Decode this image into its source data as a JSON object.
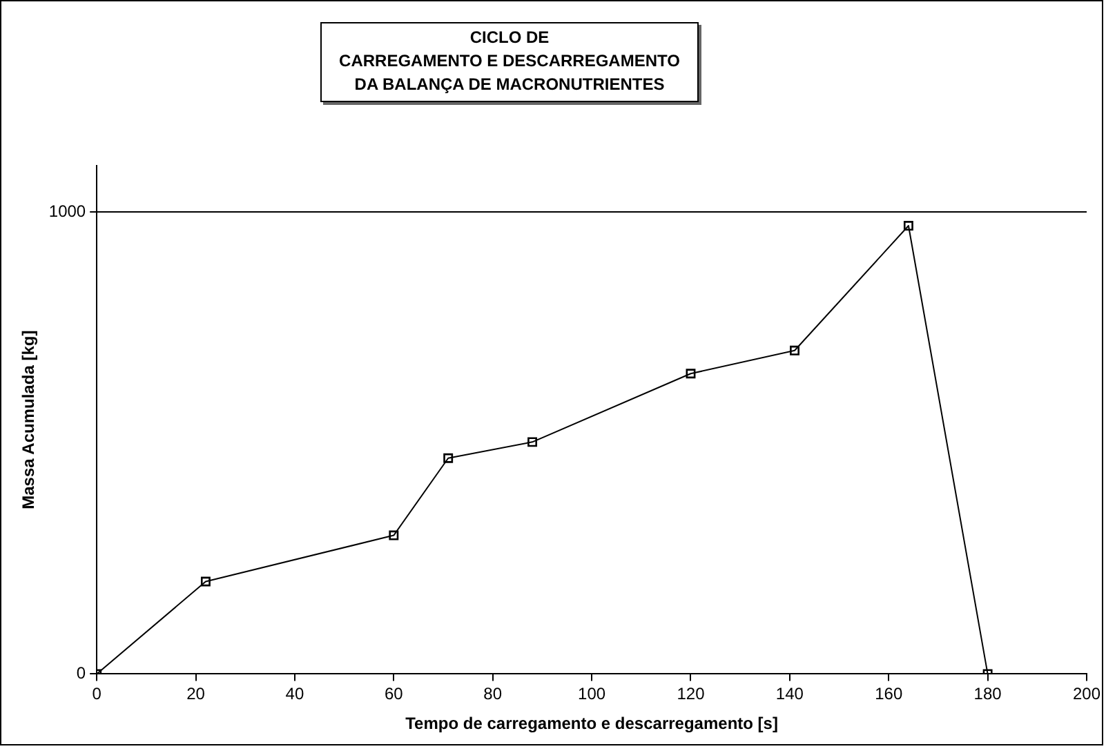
{
  "chart_data": {
    "type": "line",
    "title": "CICLO DE\nCARREGAMENTO E DESCARREGAMENTO\nDA BALANÇA DE MACRONUTRIENTES",
    "xlabel": "Tempo de carregamento e descarregamento [s]",
    "ylabel": "Massa Acumulada [kg]",
    "x": [
      0,
      22,
      60,
      71,
      88,
      120,
      141,
      164,
      180
    ],
    "series": [
      {
        "color": "#000000",
        "values": [
          0,
          200,
          300,
          467,
          502,
          650,
          700,
          970,
          0
        ]
      }
    ],
    "xlim": [
      0,
      200
    ],
    "xticks": [
      0,
      20,
      40,
      60,
      80,
      100,
      120,
      140,
      160,
      180,
      200
    ],
    "ylim": [
      0,
      1100
    ],
    "yticks": [
      0,
      1000
    ],
    "grid": "y",
    "legend": false,
    "marker": "square",
    "line_style": "solid"
  }
}
